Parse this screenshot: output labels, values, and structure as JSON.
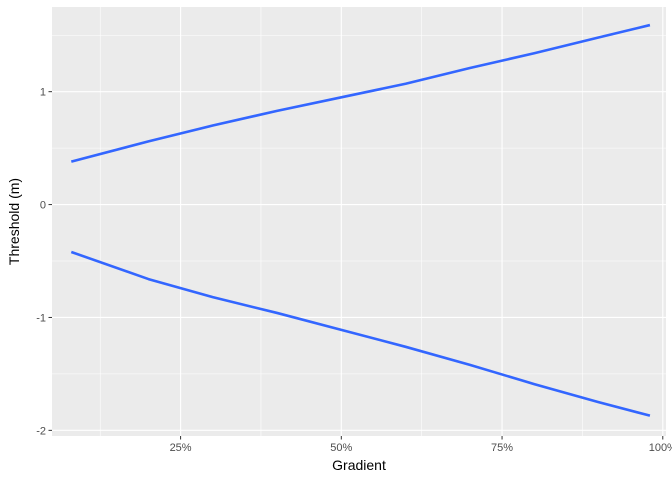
{
  "chart_data": {
    "type": "line",
    "xlabel": "Gradient",
    "ylabel": "Threshold (m)",
    "x_tick_values": [
      0.25,
      0.5,
      0.75,
      1.0
    ],
    "x_tick_labels": [
      "25%",
      "50%",
      "75%",
      "100%"
    ],
    "y_tick_values": [
      -2,
      -1,
      0,
      1
    ],
    "y_tick_labels": [
      "-2",
      "-1",
      "0",
      "1"
    ],
    "xlim": [
      0.05,
      1.005
    ],
    "ylim": [
      -2.05,
      1.75
    ],
    "grid": true,
    "series": [
      {
        "x": [
          0.08,
          0.2,
          0.3,
          0.4,
          0.5,
          0.6,
          0.7,
          0.8,
          0.9,
          0.98
        ],
        "values": [
          0.38,
          0.56,
          0.7,
          0.83,
          0.95,
          1.07,
          1.21,
          1.34,
          1.48,
          1.59
        ]
      },
      {
        "x": [
          0.08,
          0.2,
          0.3,
          0.4,
          0.5,
          0.6,
          0.7,
          0.8,
          0.9,
          0.98
        ],
        "values": [
          -0.42,
          -0.66,
          -0.82,
          -0.96,
          -1.11,
          -1.26,
          -1.42,
          -1.59,
          -1.75,
          -1.87
        ]
      }
    ],
    "colors": {
      "line": "#3366FF",
      "panel_bg": "#EBEBEB",
      "grid_major": "#FFFFFF",
      "tick_text": "#4D4D4D",
      "tick_mark": "#333333"
    }
  }
}
